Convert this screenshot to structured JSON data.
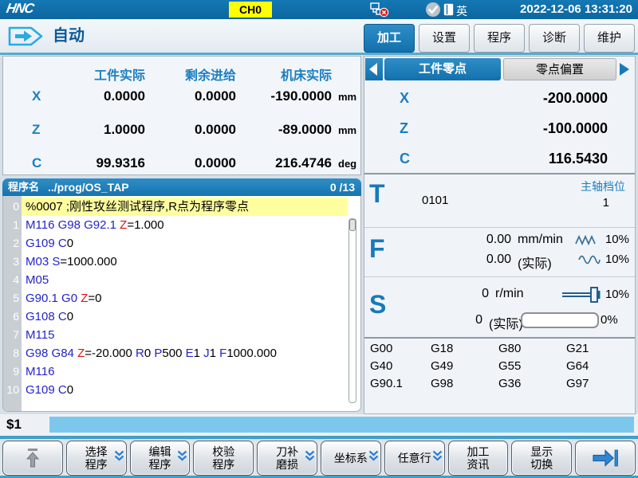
{
  "titlebar": {
    "logo": "HNC",
    "channel": "CH0",
    "lang": "英",
    "datetime": "2022-12-06 13:31:20"
  },
  "navbar": {
    "mode": "自动",
    "tabs": [
      {
        "label": "加工",
        "active": true
      },
      {
        "label": "设置",
        "active": false
      },
      {
        "label": "程序",
        "active": false
      },
      {
        "label": "诊断",
        "active": false
      },
      {
        "label": "维护",
        "active": false
      }
    ]
  },
  "coord_table": {
    "headers": [
      "工件实际",
      "剩余进给",
      "机床实际"
    ],
    "rows": [
      {
        "axis": "X",
        "actual": "0.0000",
        "remain": "0.0000",
        "machine": "-190.0000",
        "unit": "mm"
      },
      {
        "axis": "Z",
        "actual": "1.0000",
        "remain": "0.0000",
        "machine": "-89.0000",
        "unit": "mm"
      },
      {
        "axis": "C",
        "actual": "99.9316",
        "remain": "0.0000",
        "machine": "216.4746",
        "unit": "deg"
      }
    ]
  },
  "program": {
    "name_label": "程序名",
    "path": "../prog/OS_TAP",
    "counter": "0 /13",
    "lines": [
      {
        "n": "0",
        "hl": true,
        "seg": [
          [
            "%0007 ;刚性攻丝测试程序,R点为程序零点",
            "k"
          ]
        ]
      },
      {
        "n": "1",
        "hl": false,
        "seg": [
          [
            "M116 ",
            "b"
          ],
          [
            "G98 ",
            "b"
          ],
          [
            "G92.1 ",
            "b"
          ],
          [
            "Z",
            "r"
          ],
          [
            "=1.000",
            "k"
          ]
        ]
      },
      {
        "n": "2",
        "hl": false,
        "seg": [
          [
            "G109 ",
            "b"
          ],
          [
            "C",
            "b"
          ],
          [
            "0",
            "k"
          ]
        ]
      },
      {
        "n": "3",
        "hl": false,
        "seg": [
          [
            "M03 ",
            "b"
          ],
          [
            "S",
            "b"
          ],
          [
            "=1000.000",
            "k"
          ]
        ]
      },
      {
        "n": "4",
        "hl": false,
        "seg": [
          [
            "M05",
            "b"
          ]
        ]
      },
      {
        "n": "5",
        "hl": false,
        "seg": [
          [
            "G90.1 ",
            "b"
          ],
          [
            "G0 ",
            "b"
          ],
          [
            "Z",
            "r"
          ],
          [
            "=0",
            "k"
          ]
        ]
      },
      {
        "n": "6",
        "hl": false,
        "seg": [
          [
            "G108 ",
            "b"
          ],
          [
            "C",
            "b"
          ],
          [
            "0",
            "k"
          ]
        ]
      },
      {
        "n": "7",
        "hl": false,
        "seg": [
          [
            "M115",
            "b"
          ]
        ]
      },
      {
        "n": "8",
        "hl": false,
        "seg": [
          [
            "G98 ",
            "b"
          ],
          [
            "G84 ",
            "b"
          ],
          [
            "Z",
            "r"
          ],
          [
            "=-20.000 ",
            "k"
          ],
          [
            "R",
            "b"
          ],
          [
            "0 ",
            "k"
          ],
          [
            "P",
            "b"
          ],
          [
            "500 ",
            "k"
          ],
          [
            "E",
            "b"
          ],
          [
            "1 ",
            "k"
          ],
          [
            "J",
            "b"
          ],
          [
            "1 ",
            "k"
          ],
          [
            "F",
            "b"
          ],
          [
            "1000.000",
            "k"
          ]
        ]
      },
      {
        "n": "9",
        "hl": false,
        "seg": [
          [
            "M116",
            "b"
          ]
        ]
      },
      {
        "n": "10",
        "hl": false,
        "seg": [
          [
            "G109 ",
            "b"
          ],
          [
            "C",
            "b"
          ],
          [
            "0",
            "k"
          ]
        ]
      }
    ]
  },
  "offset": {
    "tabs": [
      {
        "label": "工件零点",
        "active": true
      },
      {
        "label": "零点偏置",
        "active": false
      }
    ],
    "rows": [
      {
        "axis": "X",
        "value": "-200.0000"
      },
      {
        "axis": "Z",
        "value": "-100.0000"
      },
      {
        "axis": "C",
        "value": "116.5430"
      }
    ]
  },
  "tool": {
    "label": "T",
    "value": "0101",
    "gear_label": "主轴档位",
    "gear_value": "1"
  },
  "feed": {
    "label": "F",
    "prog_value": "0.00",
    "prog_unit": "mm/min",
    "prog_pct": "10%",
    "act_value": "0.00",
    "act_label": "(实际)",
    "act_pct": "10%"
  },
  "spindle": {
    "label": "S",
    "prog_value": "0",
    "prog_unit": "r/min",
    "prog_pct": "10%",
    "act_value": "0",
    "act_label": "(实际)",
    "act_pct": "0%"
  },
  "gcodes": [
    [
      "G00",
      "G18",
      "G80",
      "G21"
    ],
    [
      "G40",
      "G49",
      "G55",
      "G64"
    ],
    [
      "G90.1",
      "G98",
      "G36",
      "G97"
    ]
  ],
  "command": {
    "prompt": "$1"
  },
  "softkeys": [
    {
      "type": "icon",
      "icon": "scroll-top",
      "chevron": false,
      "lines": []
    },
    {
      "type": "text",
      "lines": [
        "选择",
        "程序"
      ],
      "chevron": true
    },
    {
      "type": "text",
      "lines": [
        "编辑",
        "程序"
      ],
      "chevron": true
    },
    {
      "type": "text",
      "lines": [
        "校验",
        "程序"
      ],
      "chevron": false
    },
    {
      "type": "text",
      "lines": [
        "刀补",
        "磨损"
      ],
      "chevron": true
    },
    {
      "type": "text",
      "lines": [
        "坐标系"
      ],
      "chevron": true
    },
    {
      "type": "text",
      "lines": [
        "任意行"
      ],
      "chevron": true
    },
    {
      "type": "text",
      "lines": [
        "加工",
        "资讯"
      ],
      "chevron": false
    },
    {
      "type": "text",
      "lines": [
        "显示",
        "切换"
      ],
      "chevron": false
    },
    {
      "type": "icon",
      "icon": "next-page",
      "chevron": false,
      "lines": []
    }
  ],
  "colors": {
    "accent": "#1779b9",
    "titlebar": "#0e6ea7",
    "badge": "#ffff00",
    "highlight": "#ffffa0",
    "code_blue": "#2323cc",
    "code_red": "#e01010",
    "skybar": "#7cc7ec"
  }
}
